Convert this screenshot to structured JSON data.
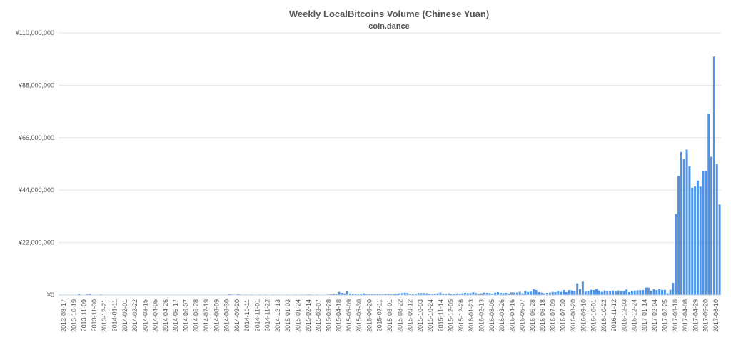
{
  "chart_data": {
    "type": "bar",
    "title": "Weekly LocalBitcoins Volume (Chinese Yuan)",
    "subtitle": "coin.dance",
    "xlabel": "",
    "ylabel": "",
    "ylim": [
      0,
      110000000
    ],
    "yticks": [
      0,
      22000000,
      44000000,
      66000000,
      88000000,
      110000000
    ],
    "ytick_labels": [
      "¥0",
      "¥22,000,000",
      "¥44,000,000",
      "¥66,000,000",
      "¥88,000,000",
      "¥110,000,000"
    ],
    "xtick_labels": [
      "2013-08-17",
      "2013-10-19",
      "2013-11-09",
      "2013-11-30",
      "2013-12-21",
      "2014-01-11",
      "2014-02-01",
      "2014-02-22",
      "2014-03-15",
      "2014-04-05",
      "2014-04-26",
      "2014-05-17",
      "2014-06-07",
      "2014-06-28",
      "2014-07-19",
      "2014-08-09",
      "2014-08-30",
      "2014-09-20",
      "2014-10-11",
      "2014-11-01",
      "2014-11-22",
      "2014-12-13",
      "2015-01-03",
      "2015-01-24",
      "2015-02-14",
      "2015-03-07",
      "2015-03-28",
      "2015-04-18",
      "2015-05-09",
      "2015-05-30",
      "2015-06-20",
      "2015-07-11",
      "2015-08-01",
      "2015-08-22",
      "2015-09-12",
      "2015-10-03",
      "2015-10-24",
      "2015-11-14",
      "2015-12-05",
      "2015-12-26",
      "2016-01-23",
      "2016-02-13",
      "2016-03-05",
      "2016-03-26",
      "2016-04-16",
      "2016-05-07",
      "2016-05-28",
      "2016-06-18",
      "2016-07-09",
      "2016-07-30",
      "2016-08-20",
      "2016-09-10",
      "2016-10-01",
      "2016-10-22",
      "2016-11-12",
      "2016-12-03",
      "2016-12-24",
      "2017-01-14",
      "2017-02-04",
      "2017-02-25",
      "2017-03-18",
      "2017-04-08",
      "2017-04-29",
      "2017-05-20",
      "2017-06-10"
    ],
    "grid": true,
    "series": [
      {
        "color": "#4d94e8",
        "values": [
          50000,
          20000,
          30000,
          10000,
          20000,
          40000,
          30000,
          500000,
          20000,
          30000,
          300000,
          400000,
          100000,
          50000,
          20000,
          250000,
          100000,
          50000,
          20000,
          30000,
          20000,
          10000,
          20000,
          15000,
          20000,
          15000,
          10000,
          20000,
          10000,
          10000,
          10000,
          20000,
          10000,
          10000,
          20000,
          10000,
          10000,
          20000,
          10000,
          20000,
          10000,
          10000,
          20000,
          10000,
          10000,
          10000,
          10000,
          10000,
          10000,
          20000,
          10000,
          10000,
          20000,
          10000,
          10000,
          20000,
          10000,
          10000,
          20000,
          10000,
          10000,
          10000,
          300000,
          200000,
          100000,
          300000,
          200000,
          100000,
          200000,
          150000,
          200000,
          150000,
          100000,
          200000,
          150000,
          200000,
          100000,
          150000,
          200000,
          150000,
          150000,
          100000,
          150000,
          200000,
          150000,
          100000,
          200000,
          150000,
          200000,
          150000,
          200000,
          250000,
          200000,
          150000,
          200000,
          150000,
          100000,
          150000,
          200000,
          300000,
          400000,
          300000,
          1300000,
          900000,
          700000,
          1500000,
          700000,
          600000,
          600000,
          500000,
          400000,
          700000,
          400000,
          400000,
          400000,
          400000,
          400000,
          400000,
          400000,
          500000,
          500000,
          400000,
          400000,
          500000,
          700000,
          800000,
          1000000,
          800000,
          500000,
          500000,
          600000,
          800000,
          800000,
          800000,
          700000,
          500000,
          400000,
          600000,
          700000,
          1000000,
          600000,
          500000,
          700000,
          500000,
          600000,
          700000,
          500000,
          700000,
          900000,
          800000,
          800000,
          1100000,
          800000,
          500000,
          700000,
          1000000,
          900000,
          800000,
          600000,
          1000000,
          1200000,
          900000,
          800000,
          900000,
          600000,
          1100000,
          1000000,
          1000000,
          1300000,
          700000,
          1700000,
          1300000,
          1400000,
          2500000,
          2100000,
          1200000,
          1000000,
          700000,
          900000,
          1000000,
          1300000,
          1200000,
          1800000,
          1300000,
          2100000,
          1200000,
          2100000,
          1900000,
          1600000,
          4900000,
          2500000,
          5600000,
          1400000,
          1700000,
          2200000,
          2100000,
          2500000,
          1900000,
          1300000,
          1900000,
          1800000,
          1700000,
          1900000,
          1800000,
          1900000,
          1700000,
          1700000,
          2300000,
          1200000,
          1700000,
          1900000,
          2000000,
          2000000,
          2100000,
          3100000,
          3100000,
          1800000,
          2400000,
          2100000,
          2500000,
          2100000,
          2200000,
          700000,
          2200000,
          5100000,
          34000000,
          50000000,
          60000000,
          57000000,
          61000000,
          54000000,
          45000000,
          45500000,
          48000000,
          45500000,
          52000000,
          52000000,
          76000000,
          58000000,
          100000000,
          55000000,
          38000000
        ]
      }
    ]
  }
}
